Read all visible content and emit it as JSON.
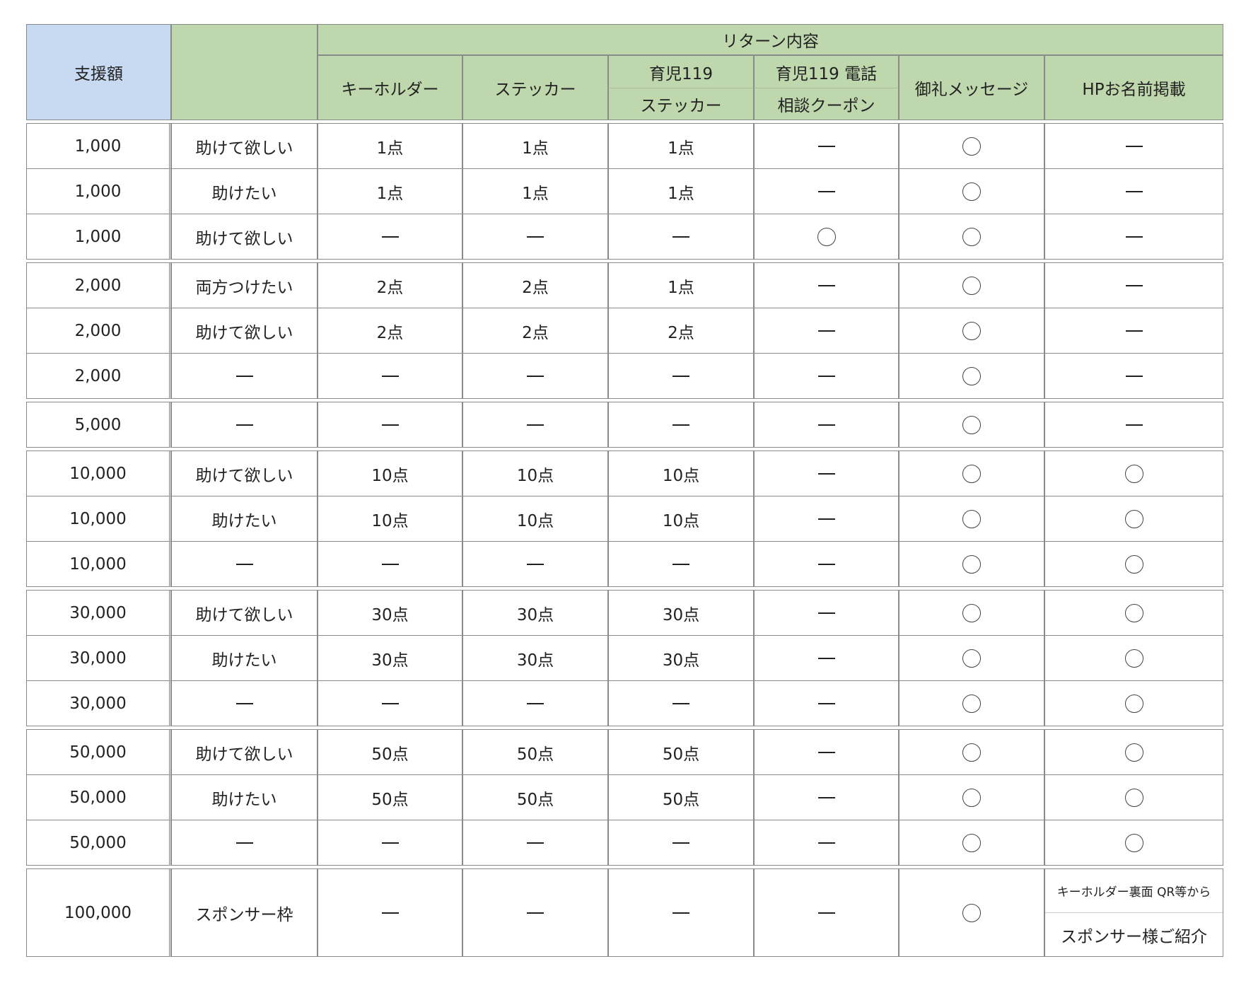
{
  "header": {
    "amount": "支援額",
    "category": "",
    "returns": "リターン内容",
    "columns": [
      {
        "line1": "キーホルダー"
      },
      {
        "line1": "ステッカー"
      },
      {
        "line1": "育児119",
        "line2": "ステッカー"
      },
      {
        "line1": "育児119 電話",
        "line2": "相談クーポン"
      },
      {
        "line1": "御礼メッセージ"
      },
      {
        "line1": "HPお名前掲載"
      }
    ]
  },
  "groups": [
    [
      [
        "1,000",
        "助けて欲しい",
        "1点",
        "1点",
        "1点",
        "—",
        "○",
        "—"
      ],
      [
        "1,000",
        "助けたい",
        "1点",
        "1点",
        "1点",
        "—",
        "○",
        "—"
      ],
      [
        "1,000",
        "助けて欲しい",
        "—",
        "—",
        "—",
        "○",
        "○",
        "—"
      ]
    ],
    [
      [
        "2,000",
        "両方つけたい",
        "2点",
        "2点",
        "1点",
        "—",
        "○",
        "—"
      ],
      [
        "2,000",
        "助けて欲しい",
        "2点",
        "2点",
        "2点",
        "—",
        "○",
        "—"
      ],
      [
        "2,000",
        "—",
        "—",
        "—",
        "—",
        "—",
        "○",
        "—"
      ]
    ],
    [
      [
        "5,000",
        "—",
        "—",
        "—",
        "—",
        "—",
        "○",
        "—"
      ]
    ],
    [
      [
        "10,000",
        "助けて欲しい",
        "10点",
        "10点",
        "10点",
        "—",
        "○",
        "○"
      ],
      [
        "10,000",
        "助けたい",
        "10点",
        "10点",
        "10点",
        "—",
        "○",
        "○"
      ],
      [
        "10,000",
        "—",
        "—",
        "—",
        "—",
        "—",
        "○",
        "○"
      ]
    ],
    [
      [
        "30,000",
        "助けて欲しい",
        "30点",
        "30点",
        "30点",
        "—",
        "○",
        "○"
      ],
      [
        "30,000",
        "助けたい",
        "30点",
        "30点",
        "30点",
        "—",
        "○",
        "○"
      ],
      [
        "30,000",
        "—",
        "—",
        "—",
        "—",
        "—",
        "○",
        "○"
      ]
    ],
    [
      [
        "50,000",
        "助けて欲しい",
        "50点",
        "50点",
        "50点",
        "—",
        "○",
        "○"
      ],
      [
        "50,000",
        "助けたい",
        "50点",
        "50点",
        "50点",
        "—",
        "○",
        "○"
      ],
      [
        "50,000",
        "—",
        "—",
        "—",
        "—",
        "—",
        "○",
        "○"
      ]
    ],
    [
      [
        "100,000",
        "スポンサー枠",
        "—",
        "—",
        "—",
        "—",
        "○",
        [
          "キーホルダー裏面 QR等から",
          "スポンサー様ご紹介"
        ]
      ]
    ]
  ],
  "colors": {
    "amount_header": "#c8d9f2",
    "return_header": "#bfd7ac",
    "border": "#8a8a8a"
  }
}
